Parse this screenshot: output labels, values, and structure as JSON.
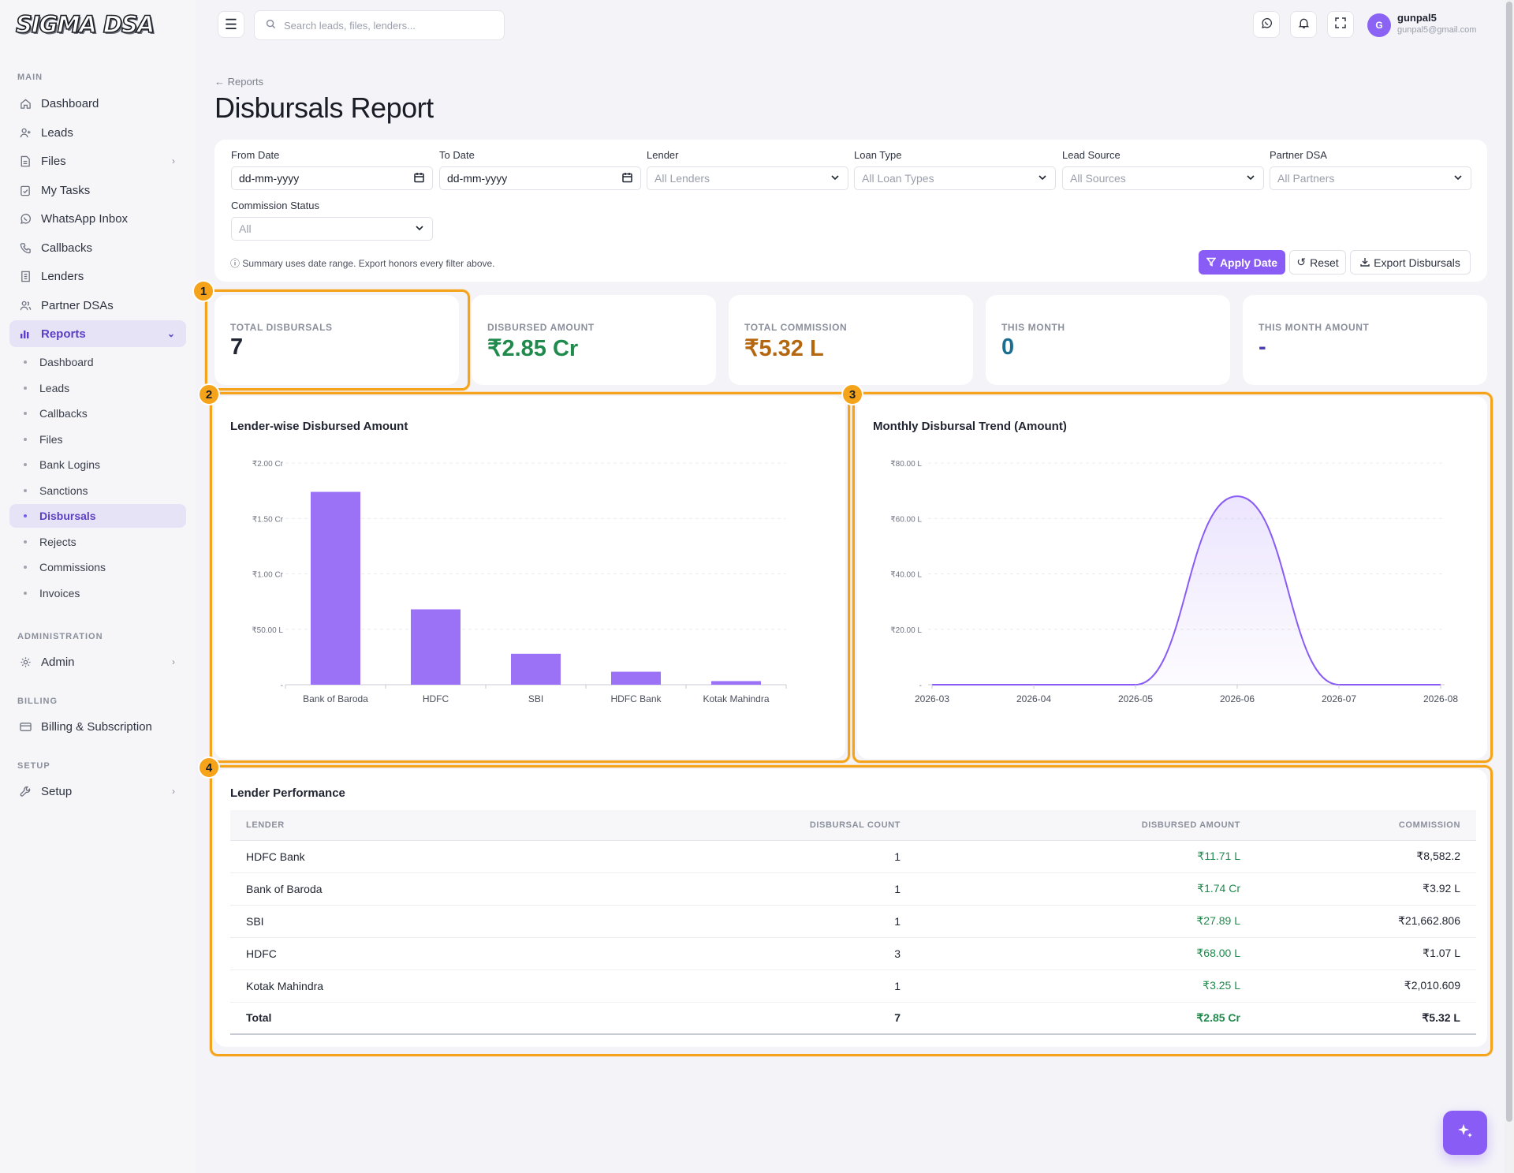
{
  "app": {
    "logo": "SIGMA DSA"
  },
  "search": {
    "placeholder": "Search leads, files, lenders..."
  },
  "user": {
    "initial": "G",
    "name": "gunpal5",
    "email": "gunpal5@gmail.com"
  },
  "sidebar": {
    "sections": {
      "main": "MAIN",
      "administration": "ADMINISTRATION",
      "billing": "BILLING",
      "setup": "SETUP"
    },
    "main_items": [
      {
        "label": "Dashboard",
        "icon": "home-icon"
      },
      {
        "label": "Leads",
        "icon": "user-plus-icon"
      },
      {
        "label": "Files",
        "icon": "file-icon"
      },
      {
        "label": "My Tasks",
        "icon": "clipboard-check-icon"
      },
      {
        "label": "WhatsApp Inbox",
        "icon": "whatsapp-icon"
      },
      {
        "label": "Callbacks",
        "icon": "phone-icon"
      },
      {
        "label": "Lenders",
        "icon": "building-icon"
      },
      {
        "label": "Partner DSAs",
        "icon": "users-icon"
      },
      {
        "label": "Reports",
        "icon": "bar-chart-icon"
      }
    ],
    "report_items": [
      "Dashboard",
      "Leads",
      "Callbacks",
      "Files",
      "Bank Logins",
      "Sanctions",
      "Disbursals",
      "Rejects",
      "Commissions",
      "Invoices"
    ],
    "admin": "Admin",
    "billing_item": "Billing & Subscription",
    "setup_item": "Setup"
  },
  "header": {
    "breadcrumb": "Reports",
    "title": "Disbursals Report"
  },
  "filters": {
    "from_date": {
      "label": "From Date",
      "value": "dd-mm-yyyy"
    },
    "to_date": {
      "label": "To Date",
      "value": "dd-mm-yyyy"
    },
    "lender": {
      "label": "Lender",
      "value": "All Lenders"
    },
    "loan_type": {
      "label": "Loan Type",
      "value": "All Loan Types"
    },
    "lead_source": {
      "label": "Lead Source",
      "value": "All Sources"
    },
    "partner_dsa": {
      "label": "Partner DSA",
      "value": "All Partners"
    },
    "commission_status": {
      "label": "Commission Status",
      "value": "All"
    },
    "note": "Summary uses date range. Export honors every filter above.",
    "apply": "Apply Date",
    "reset": "Reset",
    "export": "Export Disbursals"
  },
  "stats": [
    {
      "label": "TOTAL DISBURSALS",
      "value": "7",
      "color": "#1f2430"
    },
    {
      "label": "DISBURSED AMOUNT",
      "value": "₹2.85 Cr",
      "color": "#1f8a4c"
    },
    {
      "label": "TOTAL COMMISSION",
      "value": "₹5.32 L",
      "color": "#b5670f"
    },
    {
      "label": "THIS MONTH",
      "value": "0",
      "color": "#1a6e8f"
    },
    {
      "label": "THIS MONTH AMOUNT",
      "value": "-",
      "color": "#4a3fb5"
    }
  ],
  "highlights": [
    "1",
    "2",
    "3",
    "4"
  ],
  "chart_data": [
    {
      "type": "bar",
      "title": "Lender-wise Disbursed Amount",
      "categories": [
        "Bank of Baroda",
        "HDFC",
        "SBI",
        "HDFC Bank",
        "Kotak Mahindra"
      ],
      "values": [
        174,
        68,
        27.89,
        11.71,
        3.25
      ],
      "unit": "L",
      "ylim": [
        0,
        200
      ],
      "yticks": [
        {
          "v": 0,
          "label": "-"
        },
        {
          "v": 50,
          "label": "₹50.00 L"
        },
        {
          "v": 100,
          "label": "₹1.00 Cr"
        },
        {
          "v": 150,
          "label": "₹1.50 Cr"
        },
        {
          "v": 200,
          "label": "₹2.00 Cr"
        }
      ],
      "color": "#9b72f5",
      "grid": true
    },
    {
      "type": "area",
      "title": "Monthly Disbursal Trend (Amount)",
      "x": [
        "2026-03",
        "2026-04",
        "2026-05",
        "2026-06",
        "2026-07",
        "2026-08"
      ],
      "values": [
        0,
        0,
        0,
        68,
        0,
        0
      ],
      "unit": "L",
      "ylim": [
        0,
        80
      ],
      "yticks": [
        {
          "v": 0,
          "label": "-"
        },
        {
          "v": 20,
          "label": "₹20.00 L"
        },
        {
          "v": 40,
          "label": "₹40.00 L"
        },
        {
          "v": 60,
          "label": "₹60.00 L"
        },
        {
          "v": 80,
          "label": "₹80.00 L"
        }
      ],
      "color": "#8a5cf6",
      "grid": true
    }
  ],
  "performance": {
    "title": "Lender Performance",
    "columns": [
      "LENDER",
      "DISBURSAL COUNT",
      "DISBURSED AMOUNT",
      "COMMISSION"
    ],
    "rows": [
      [
        "HDFC Bank",
        "1",
        "₹11.71 L",
        "₹8,582.2"
      ],
      [
        "Bank of Baroda",
        "1",
        "₹1.74 Cr",
        "₹3.92 L"
      ],
      [
        "SBI",
        "1",
        "₹27.89 L",
        "₹21,662.806"
      ],
      [
        "HDFC",
        "3",
        "₹68.00 L",
        "₹1.07 L"
      ],
      [
        "Kotak Mahindra",
        "1",
        "₹3.25 L",
        "₹2,010.609"
      ]
    ],
    "total": [
      "Total",
      "7",
      "₹2.85 Cr",
      "₹5.32 L"
    ]
  }
}
